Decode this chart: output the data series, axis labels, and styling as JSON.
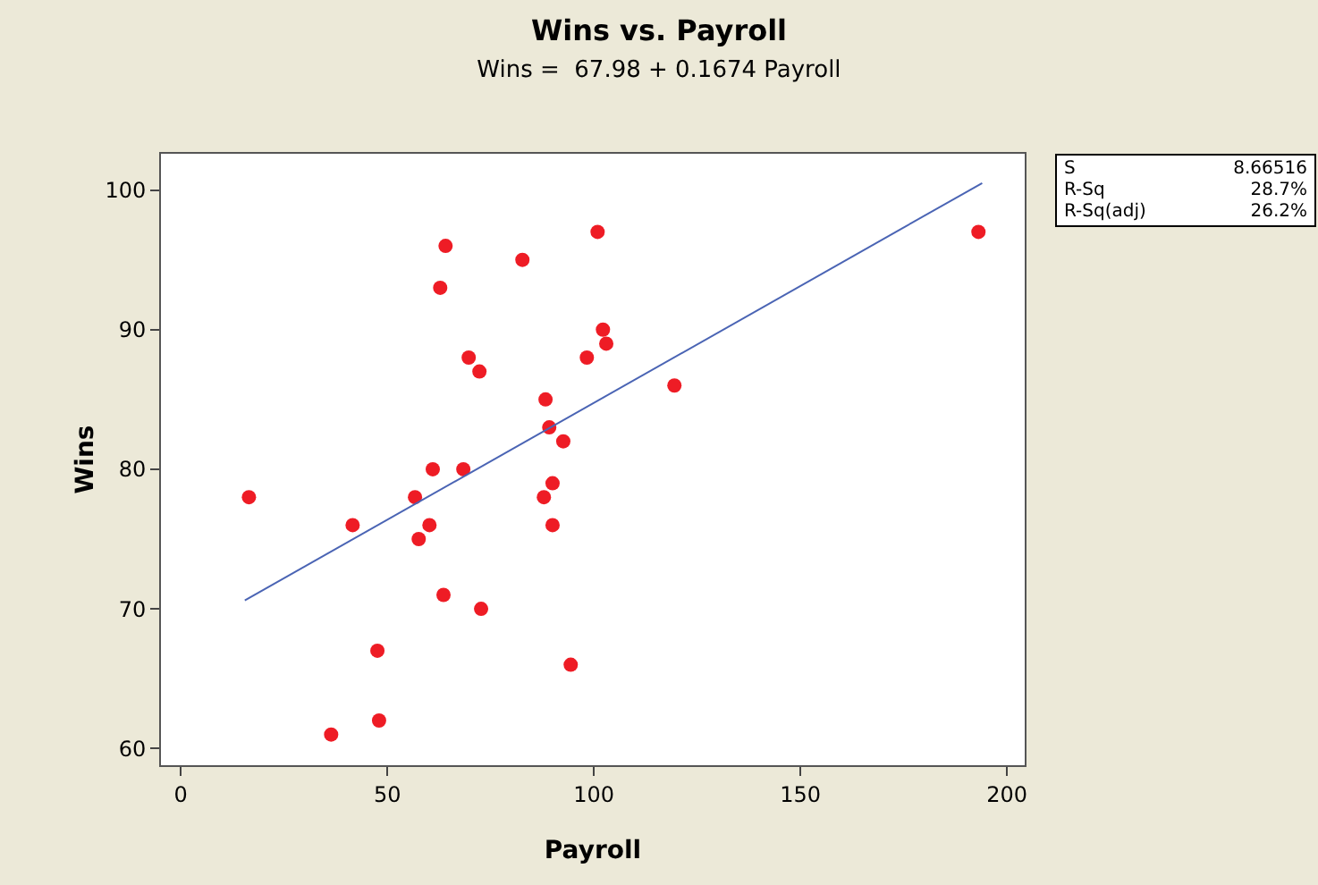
{
  "chart_data": {
    "type": "scatter",
    "title": "Wins vs. Payroll",
    "subtitle": "Wins =  67.98 + 0.1674 Payroll",
    "xlabel": "Payroll",
    "ylabel": "Wins",
    "xlim": [
      -4.8,
      204.3
    ],
    "xticks": [
      0,
      50,
      100,
      150,
      200
    ],
    "ylim": [
      58.8,
      102.6
    ],
    "yticks": [
      60,
      70,
      80,
      90,
      100
    ],
    "grid": false,
    "series": [
      {
        "marker": "circle",
        "color": "#ee1c25",
        "x": [
          16.5,
          41.6,
          36.4,
          48,
          47.6,
          57.6,
          60.2,
          56.7,
          61,
          68.4,
          63.6,
          72.7,
          69.7,
          72.3,
          64.1,
          62.8,
          82.7,
          100.9,
          102.2,
          103,
          98.3,
          88.3,
          89.2,
          92.6,
          90,
          87.9,
          90,
          94.4,
          119.5,
          193.1
        ],
        "values": [
          78,
          76,
          61,
          62,
          67,
          75,
          76,
          78,
          80,
          80,
          71,
          70,
          88,
          87,
          96,
          93,
          95,
          97,
          90,
          89,
          88,
          85,
          83,
          82,
          79,
          78,
          76,
          66,
          86,
          97
        ]
      },
      {
        "type": "line",
        "color": "#4a64b4",
        "line_style": "solid",
        "x": [
          15.5,
          194
        ],
        "values": [
          70.6,
          100.5
        ]
      }
    ],
    "annotations": [
      "S",
      "8.66516",
      "R-Sq",
      "28.7%",
      "R-Sq(adj)",
      "26.2%"
    ]
  }
}
